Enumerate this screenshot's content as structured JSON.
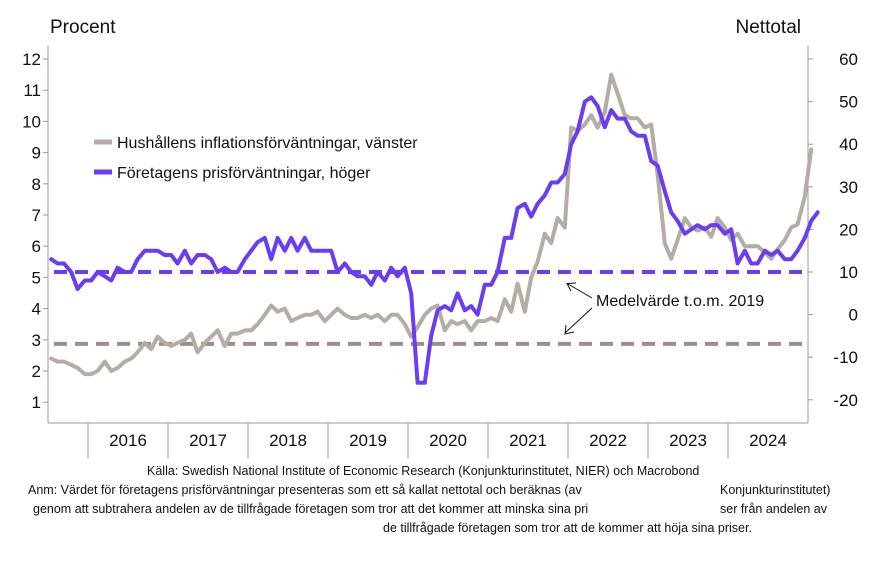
{
  "chart_data": {
    "type": "line",
    "y_left_label": "Procent",
    "y_right_label": "Nettotal",
    "y_left_range": [
      0.5,
      12.5
    ],
    "y_right_range": [
      -25,
      65
    ],
    "y_left_ticks": [
      "1",
      "2",
      "3",
      "4",
      "5",
      "6",
      "7",
      "8",
      "9",
      "10",
      "11",
      "12"
    ],
    "y_right_ticks": [
      "-20",
      "-10",
      "0",
      "10",
      "20",
      "30",
      "40",
      "50",
      "60"
    ],
    "x_range": [
      2015.5,
      2025.0
    ],
    "x_categories": [
      "2016",
      "2017",
      "2018",
      "2019",
      "2020",
      "2021",
      "2022",
      "2023",
      "2024"
    ],
    "grid": false,
    "legend_position": "top-left",
    "series": [
      {
        "name": "Hushållens inflationsförväntningar, vänster",
        "axis": "left",
        "color": "#b5aca3",
        "points": [
          [
            2015.54,
            2.4
          ],
          [
            2015.62,
            2.3
          ],
          [
            2015.7,
            2.3
          ],
          [
            2015.79,
            2.2
          ],
          [
            2015.87,
            2.1
          ],
          [
            2015.96,
            1.9
          ],
          [
            2016.04,
            1.9
          ],
          [
            2016.12,
            2.0
          ],
          [
            2016.21,
            2.3
          ],
          [
            2016.29,
            2.0
          ],
          [
            2016.37,
            2.1
          ],
          [
            2016.46,
            2.3
          ],
          [
            2016.54,
            2.4
          ],
          [
            2016.62,
            2.6
          ],
          [
            2016.71,
            2.9
          ],
          [
            2016.79,
            2.7
          ],
          [
            2016.87,
            3.1
          ],
          [
            2016.96,
            2.9
          ],
          [
            2017.04,
            2.8
          ],
          [
            2017.12,
            2.9
          ],
          [
            2017.21,
            3.0
          ],
          [
            2017.29,
            3.2
          ],
          [
            2017.37,
            2.6
          ],
          [
            2017.46,
            2.9
          ],
          [
            2017.54,
            3.1
          ],
          [
            2017.62,
            3.3
          ],
          [
            2017.71,
            2.8
          ],
          [
            2017.79,
            3.2
          ],
          [
            2017.87,
            3.2
          ],
          [
            2017.96,
            3.3
          ],
          [
            2018.04,
            3.3
          ],
          [
            2018.12,
            3.5
          ],
          [
            2018.21,
            3.8
          ],
          [
            2018.29,
            4.1
          ],
          [
            2018.37,
            3.9
          ],
          [
            2018.46,
            4.0
          ],
          [
            2018.54,
            3.6
          ],
          [
            2018.62,
            3.7
          ],
          [
            2018.71,
            3.8
          ],
          [
            2018.79,
            3.8
          ],
          [
            2018.87,
            3.9
          ],
          [
            2018.96,
            3.6
          ],
          [
            2019.04,
            3.8
          ],
          [
            2019.12,
            4.0
          ],
          [
            2019.21,
            3.8
          ],
          [
            2019.29,
            3.7
          ],
          [
            2019.37,
            3.7
          ],
          [
            2019.46,
            3.8
          ],
          [
            2019.54,
            3.7
          ],
          [
            2019.62,
            3.8
          ],
          [
            2019.71,
            3.6
          ],
          [
            2019.79,
            3.8
          ],
          [
            2019.87,
            3.8
          ],
          [
            2019.96,
            3.5
          ],
          [
            2020.04,
            3.1
          ],
          [
            2020.12,
            3.4
          ],
          [
            2020.21,
            3.8
          ],
          [
            2020.29,
            4.0
          ],
          [
            2020.37,
            4.1
          ],
          [
            2020.46,
            3.3
          ],
          [
            2020.54,
            3.6
          ],
          [
            2020.62,
            3.5
          ],
          [
            2020.71,
            3.6
          ],
          [
            2020.79,
            3.3
          ],
          [
            2020.87,
            3.6
          ],
          [
            2020.96,
            3.6
          ],
          [
            2021.04,
            3.7
          ],
          [
            2021.12,
            3.6
          ],
          [
            2021.21,
            4.3
          ],
          [
            2021.29,
            3.9
          ],
          [
            2021.37,
            4.8
          ],
          [
            2021.46,
            3.9
          ],
          [
            2021.54,
            5.0
          ],
          [
            2021.62,
            5.5
          ],
          [
            2021.71,
            6.4
          ],
          [
            2021.79,
            6.1
          ],
          [
            2021.87,
            6.9
          ],
          [
            2021.96,
            6.6
          ],
          [
            2022.04,
            9.8
          ],
          [
            2022.12,
            9.7
          ],
          [
            2022.21,
            9.9
          ],
          [
            2022.29,
            10.2
          ],
          [
            2022.37,
            9.8
          ],
          [
            2022.46,
            10.3
          ],
          [
            2022.54,
            11.5
          ],
          [
            2022.62,
            10.9
          ],
          [
            2022.71,
            10.2
          ],
          [
            2022.79,
            10.1
          ],
          [
            2022.87,
            10.1
          ],
          [
            2022.96,
            9.8
          ],
          [
            2023.04,
            9.9
          ],
          [
            2023.12,
            8.3
          ],
          [
            2023.21,
            6.1
          ],
          [
            2023.29,
            5.6
          ],
          [
            2023.37,
            6.2
          ],
          [
            2023.46,
            6.9
          ],
          [
            2023.54,
            6.6
          ],
          [
            2023.62,
            6.5
          ],
          [
            2023.71,
            6.6
          ],
          [
            2023.79,
            6.3
          ],
          [
            2023.87,
            6.9
          ],
          [
            2023.96,
            6.6
          ],
          [
            2024.04,
            6.2
          ],
          [
            2024.12,
            6.4
          ],
          [
            2024.21,
            6.0
          ],
          [
            2024.29,
            6.0
          ],
          [
            2024.37,
            6.0
          ],
          [
            2024.46,
            5.8
          ],
          [
            2024.54,
            5.6
          ],
          [
            2024.62,
            5.9
          ],
          [
            2024.71,
            6.2
          ],
          [
            2024.79,
            6.6
          ],
          [
            2024.87,
            6.7
          ],
          [
            2024.96,
            7.6
          ],
          [
            2025.04,
            9.1
          ]
        ]
      },
      {
        "name": "Företagens prisförväntningar, höger",
        "axis": "right",
        "color": "#6b3cf0",
        "points": [
          [
            2015.54,
            13
          ],
          [
            2015.62,
            12
          ],
          [
            2015.7,
            12
          ],
          [
            2015.79,
            10
          ],
          [
            2015.87,
            6
          ],
          [
            2015.96,
            8
          ],
          [
            2016.04,
            8
          ],
          [
            2016.12,
            10
          ],
          [
            2016.21,
            9
          ],
          [
            2016.29,
            8
          ],
          [
            2016.37,
            11
          ],
          [
            2016.46,
            10
          ],
          [
            2016.54,
            10
          ],
          [
            2016.62,
            13
          ],
          [
            2016.71,
            15
          ],
          [
            2016.79,
            15
          ],
          [
            2016.87,
            15
          ],
          [
            2016.96,
            14
          ],
          [
            2017.04,
            14
          ],
          [
            2017.12,
            12
          ],
          [
            2017.21,
            15
          ],
          [
            2017.29,
            12
          ],
          [
            2017.37,
            14
          ],
          [
            2017.46,
            14
          ],
          [
            2017.54,
            13
          ],
          [
            2017.62,
            10
          ],
          [
            2017.71,
            11
          ],
          [
            2017.79,
            10
          ],
          [
            2017.87,
            10
          ],
          [
            2017.96,
            13
          ],
          [
            2018.04,
            15
          ],
          [
            2018.12,
            17
          ],
          [
            2018.21,
            18
          ],
          [
            2018.29,
            13
          ],
          [
            2018.37,
            18
          ],
          [
            2018.46,
            15
          ],
          [
            2018.54,
            18
          ],
          [
            2018.62,
            15
          ],
          [
            2018.71,
            18
          ],
          [
            2018.79,
            15
          ],
          [
            2018.87,
            15
          ],
          [
            2018.96,
            15
          ],
          [
            2019.04,
            15
          ],
          [
            2019.12,
            10
          ],
          [
            2019.21,
            12
          ],
          [
            2019.29,
            10
          ],
          [
            2019.37,
            9
          ],
          [
            2019.46,
            9
          ],
          [
            2019.54,
            7
          ],
          [
            2019.62,
            10
          ],
          [
            2019.71,
            8
          ],
          [
            2019.79,
            11
          ],
          [
            2019.87,
            9
          ],
          [
            2019.96,
            11
          ],
          [
            2020.04,
            5
          ],
          [
            2020.12,
            -16
          ],
          [
            2020.21,
            -16
          ],
          [
            2020.29,
            -5
          ],
          [
            2020.37,
            1
          ],
          [
            2020.46,
            2
          ],
          [
            2020.54,
            1
          ],
          [
            2020.62,
            5
          ],
          [
            2020.71,
            1
          ],
          [
            2020.79,
            2
          ],
          [
            2020.87,
            0
          ],
          [
            2020.96,
            7
          ],
          [
            2021.04,
            7
          ],
          [
            2021.12,
            10
          ],
          [
            2021.21,
            18
          ],
          [
            2021.29,
            18
          ],
          [
            2021.37,
            25
          ],
          [
            2021.46,
            26
          ],
          [
            2021.54,
            23
          ],
          [
            2021.62,
            26
          ],
          [
            2021.71,
            28
          ],
          [
            2021.79,
            31
          ],
          [
            2021.87,
            31
          ],
          [
            2021.96,
            33
          ],
          [
            2022.04,
            40
          ],
          [
            2022.12,
            43
          ],
          [
            2022.21,
            50
          ],
          [
            2022.29,
            51
          ],
          [
            2022.37,
            49
          ],
          [
            2022.46,
            44
          ],
          [
            2022.54,
            48
          ],
          [
            2022.62,
            46
          ],
          [
            2022.71,
            46
          ],
          [
            2022.79,
            43
          ],
          [
            2022.87,
            42
          ],
          [
            2022.96,
            42
          ],
          [
            2023.04,
            36
          ],
          [
            2023.12,
            35
          ],
          [
            2023.21,
            29
          ],
          [
            2023.29,
            24
          ],
          [
            2023.37,
            22
          ],
          [
            2023.46,
            19
          ],
          [
            2023.54,
            20
          ],
          [
            2023.62,
            21
          ],
          [
            2023.71,
            20
          ],
          [
            2023.79,
            21
          ],
          [
            2023.87,
            21
          ],
          [
            2023.96,
            19
          ],
          [
            2024.04,
            20
          ],
          [
            2024.12,
            12
          ],
          [
            2024.21,
            15
          ],
          [
            2024.29,
            12
          ],
          [
            2024.37,
            12
          ],
          [
            2024.46,
            15
          ],
          [
            2024.54,
            14
          ],
          [
            2024.62,
            15
          ],
          [
            2024.71,
            13
          ],
          [
            2024.79,
            13
          ],
          [
            2024.87,
            15
          ],
          [
            2024.96,
            18
          ],
          [
            2025.04,
            22
          ],
          [
            2025.12,
            24
          ]
        ]
      }
    ],
    "reference_lines": [
      {
        "axis": "right",
        "value": 10,
        "color": "#6b3cf0",
        "style": "dashed"
      },
      {
        "axis": "left",
        "value": 2.87,
        "color": "#9a9089",
        "style": "dashed"
      }
    ],
    "annotation": "Medelvärde t.o.m. 2019"
  },
  "notes": {
    "line1": "Källa: Swedish National Institute of Economic Research (Konjunkturinstitutet, NIER)  och Macrobond",
    "line2a": "Anm: Värdet för företagens prisförväntningar presenteras som ett så kallat nettotal och beräknas (av",
    "line2b": "Konjunkturinstitutet)",
    "line3a": "genom att subtrahera andelen av de tillfrågade företagen som tror att det kommer att minska sina pri",
    "line3b": "ser från andelen av",
    "line4": "de tillfrågade företagen som tror att de kommer att höja sina priser."
  }
}
